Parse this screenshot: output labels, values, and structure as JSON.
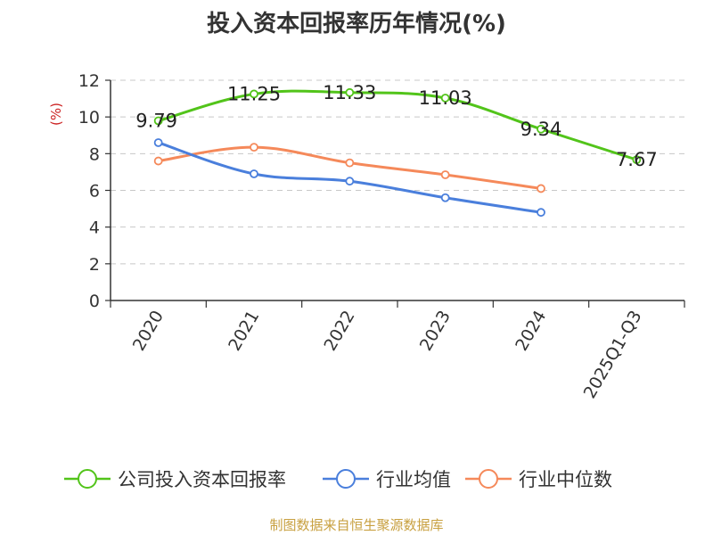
{
  "chart_data": {
    "type": "line",
    "title": "投入资本回报率历年情况(%)",
    "ylabel": "(%)",
    "xlabel": "",
    "categories": [
      "2020",
      "2021",
      "2022",
      "2023",
      "2024",
      "2025Q1-Q3"
    ],
    "ylim": [
      0,
      12
    ],
    "yticks": [
      0,
      2,
      4,
      6,
      8,
      10,
      12
    ],
    "grid": true,
    "legend_position": "bottom",
    "series": [
      {
        "name": "公司投入资本回报率",
        "color": "#52c41a",
        "values": [
          9.79,
          11.25,
          11.33,
          11.03,
          9.34,
          7.67
        ],
        "data_labels": [
          "9.79",
          "11.25",
          "11.33",
          "11.03",
          "9.34",
          "7.67"
        ]
      },
      {
        "name": "行业均值",
        "color": "#4a7fdc",
        "values": [
          8.6,
          6.9,
          6.5,
          5.6,
          4.8,
          null
        ]
      },
      {
        "name": "行业中位数",
        "color": "#f5895a",
        "values": [
          7.6,
          8.35,
          7.5,
          6.85,
          6.1,
          null
        ]
      }
    ]
  },
  "source": "制图数据来自恒生聚源数据库"
}
